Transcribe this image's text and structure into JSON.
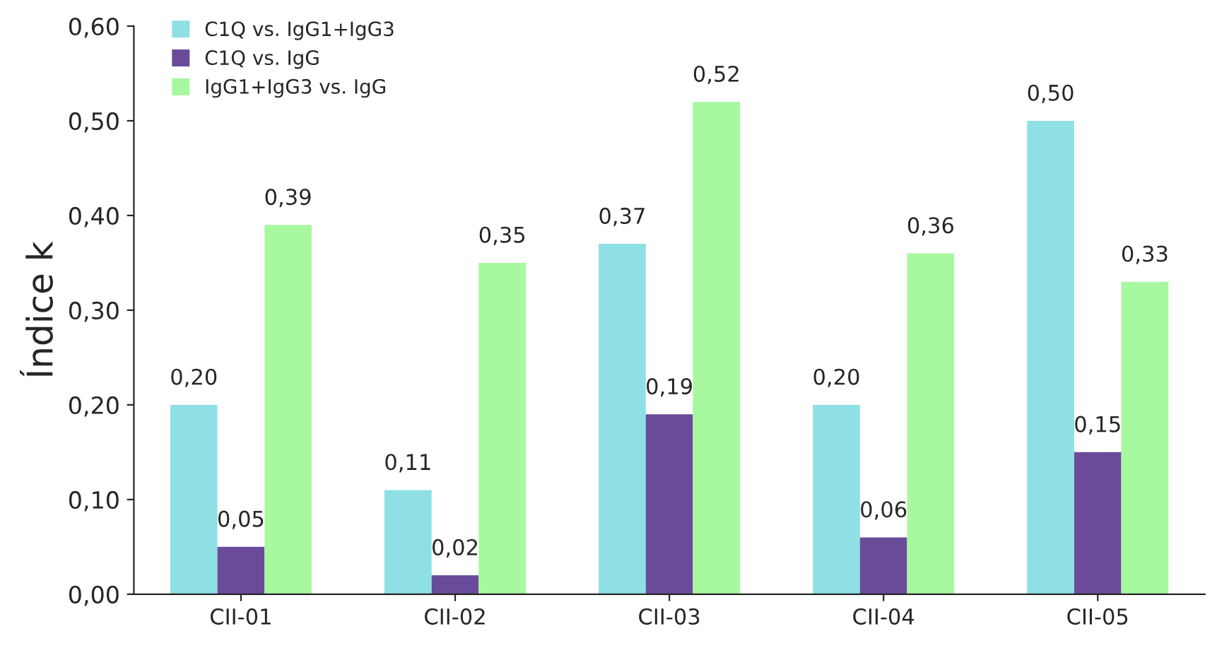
{
  "chart_data": {
    "type": "bar",
    "ylabel": "Índice k",
    "categories": [
      "CII-01",
      "CII-02",
      "CII-03",
      "CII-04",
      "CII-05"
    ],
    "series": [
      {
        "name": "C1Q vs. IgG1+IgG3",
        "color": "#8ee0e4",
        "values": [
          0.2,
          0.11,
          0.37,
          0.2,
          0.5
        ],
        "value_labels": [
          "0,20",
          "0,11",
          "0,37",
          "0,20",
          "0,50"
        ]
      },
      {
        "name": "C1Q vs. IgG",
        "color": "#6a4b9a",
        "values": [
          0.05,
          0.02,
          0.19,
          0.06,
          0.15
        ],
        "value_labels": [
          "0,05",
          "0,02",
          "0,19",
          "0,06",
          "0,15"
        ]
      },
      {
        "name": "IgG1+IgG3 vs. IgG",
        "color": "#a8f8a0",
        "values": [
          0.39,
          0.35,
          0.52,
          0.36,
          0.33
        ],
        "value_labels": [
          "0,39",
          "0,35",
          "0,52",
          "0,36",
          "0,33"
        ]
      }
    ],
    "ylim": [
      0,
      0.6
    ],
    "yticks": [
      {
        "value": 0,
        "label": "0,00"
      },
      {
        "value": 0.1,
        "label": "0,10"
      },
      {
        "value": 0.2,
        "label": "0,20"
      },
      {
        "value": 0.3,
        "label": "0,30"
      },
      {
        "value": 0.4,
        "label": "0,40"
      },
      {
        "value": 0.5,
        "label": "0,50"
      },
      {
        "value": 0.6,
        "label": "0,60"
      }
    ],
    "grid": false,
    "legend": "top left"
  }
}
